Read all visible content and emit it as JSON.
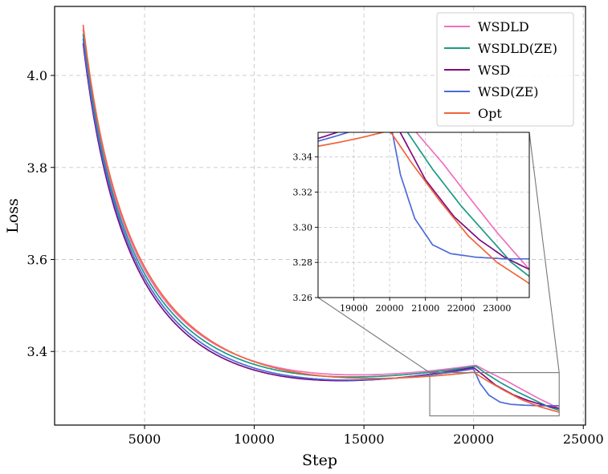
{
  "chart_data": {
    "type": "line",
    "xlabel": "Step",
    "ylabel": "Loss",
    "xlim": [
      900,
      25100
    ],
    "ylim": [
      3.24,
      4.15
    ],
    "xticks": [
      5000,
      10000,
      15000,
      20000,
      25000
    ],
    "yticks": [
      3.4,
      3.6,
      3.8,
      4.0
    ],
    "xtick_labels": [
      "5000",
      "10000",
      "15000",
      "20000",
      "25000"
    ],
    "ytick_labels": [
      "3.4",
      "3.6",
      "3.8",
      "4.0"
    ],
    "grid": true,
    "legend_position": "top-right",
    "series": [
      {
        "name": "WSDLD",
        "color": "#f06fbf",
        "x": [
          2200,
          20100,
          20700,
          21500,
          22300,
          23000,
          23900
        ],
        "y": [
          4.1,
          3.37,
          3.355,
          3.336,
          3.315,
          3.297,
          3.276
        ]
      },
      {
        "name": "WSDLD(ZE)",
        "color": "#1a9b87",
        "x": [
          2200,
          20100,
          20500,
          21200,
          22000,
          22700,
          23400,
          23900
        ],
        "y": [
          4.09,
          3.368,
          3.354,
          3.333,
          3.312,
          3.296,
          3.28,
          3.272
        ]
      },
      {
        "name": "WSD",
        "color": "#7d0d7e",
        "x": [
          2200,
          20000,
          20400,
          21000,
          21800,
          22500,
          23200,
          23900
        ],
        "y": [
          4.07,
          3.365,
          3.35,
          3.327,
          3.306,
          3.293,
          3.283,
          3.276
        ]
      },
      {
        "name": "WSD(ZE)",
        "color": "#4d6ad8",
        "x": [
          2200,
          20000,
          20300,
          20700,
          21200,
          21700,
          22400,
          23200,
          23900
        ],
        "y": [
          4.08,
          3.362,
          3.33,
          3.305,
          3.29,
          3.285,
          3.283,
          3.282,
          3.282
        ]
      },
      {
        "name": "Opt",
        "color": "#f2643b",
        "x": [
          2200,
          20000,
          20600,
          21400,
          22200,
          23000,
          23900
        ],
        "y": [
          4.11,
          3.355,
          3.337,
          3.315,
          3.295,
          3.28,
          3.268
        ]
      }
    ],
    "inset": {
      "xlim": [
        18000,
        23900
      ],
      "ylim": [
        3.26,
        3.354
      ],
      "xticks": [
        19000,
        20000,
        21000,
        22000,
        23000
      ],
      "yticks": [
        3.26,
        3.28,
        3.3,
        3.32,
        3.34
      ],
      "xtick_labels": [
        "19000",
        "20000",
        "21000",
        "22000",
        "23000"
      ],
      "ytick_labels": [
        "3.26",
        "3.28",
        "3.30",
        "3.32",
        "3.34"
      ]
    }
  }
}
